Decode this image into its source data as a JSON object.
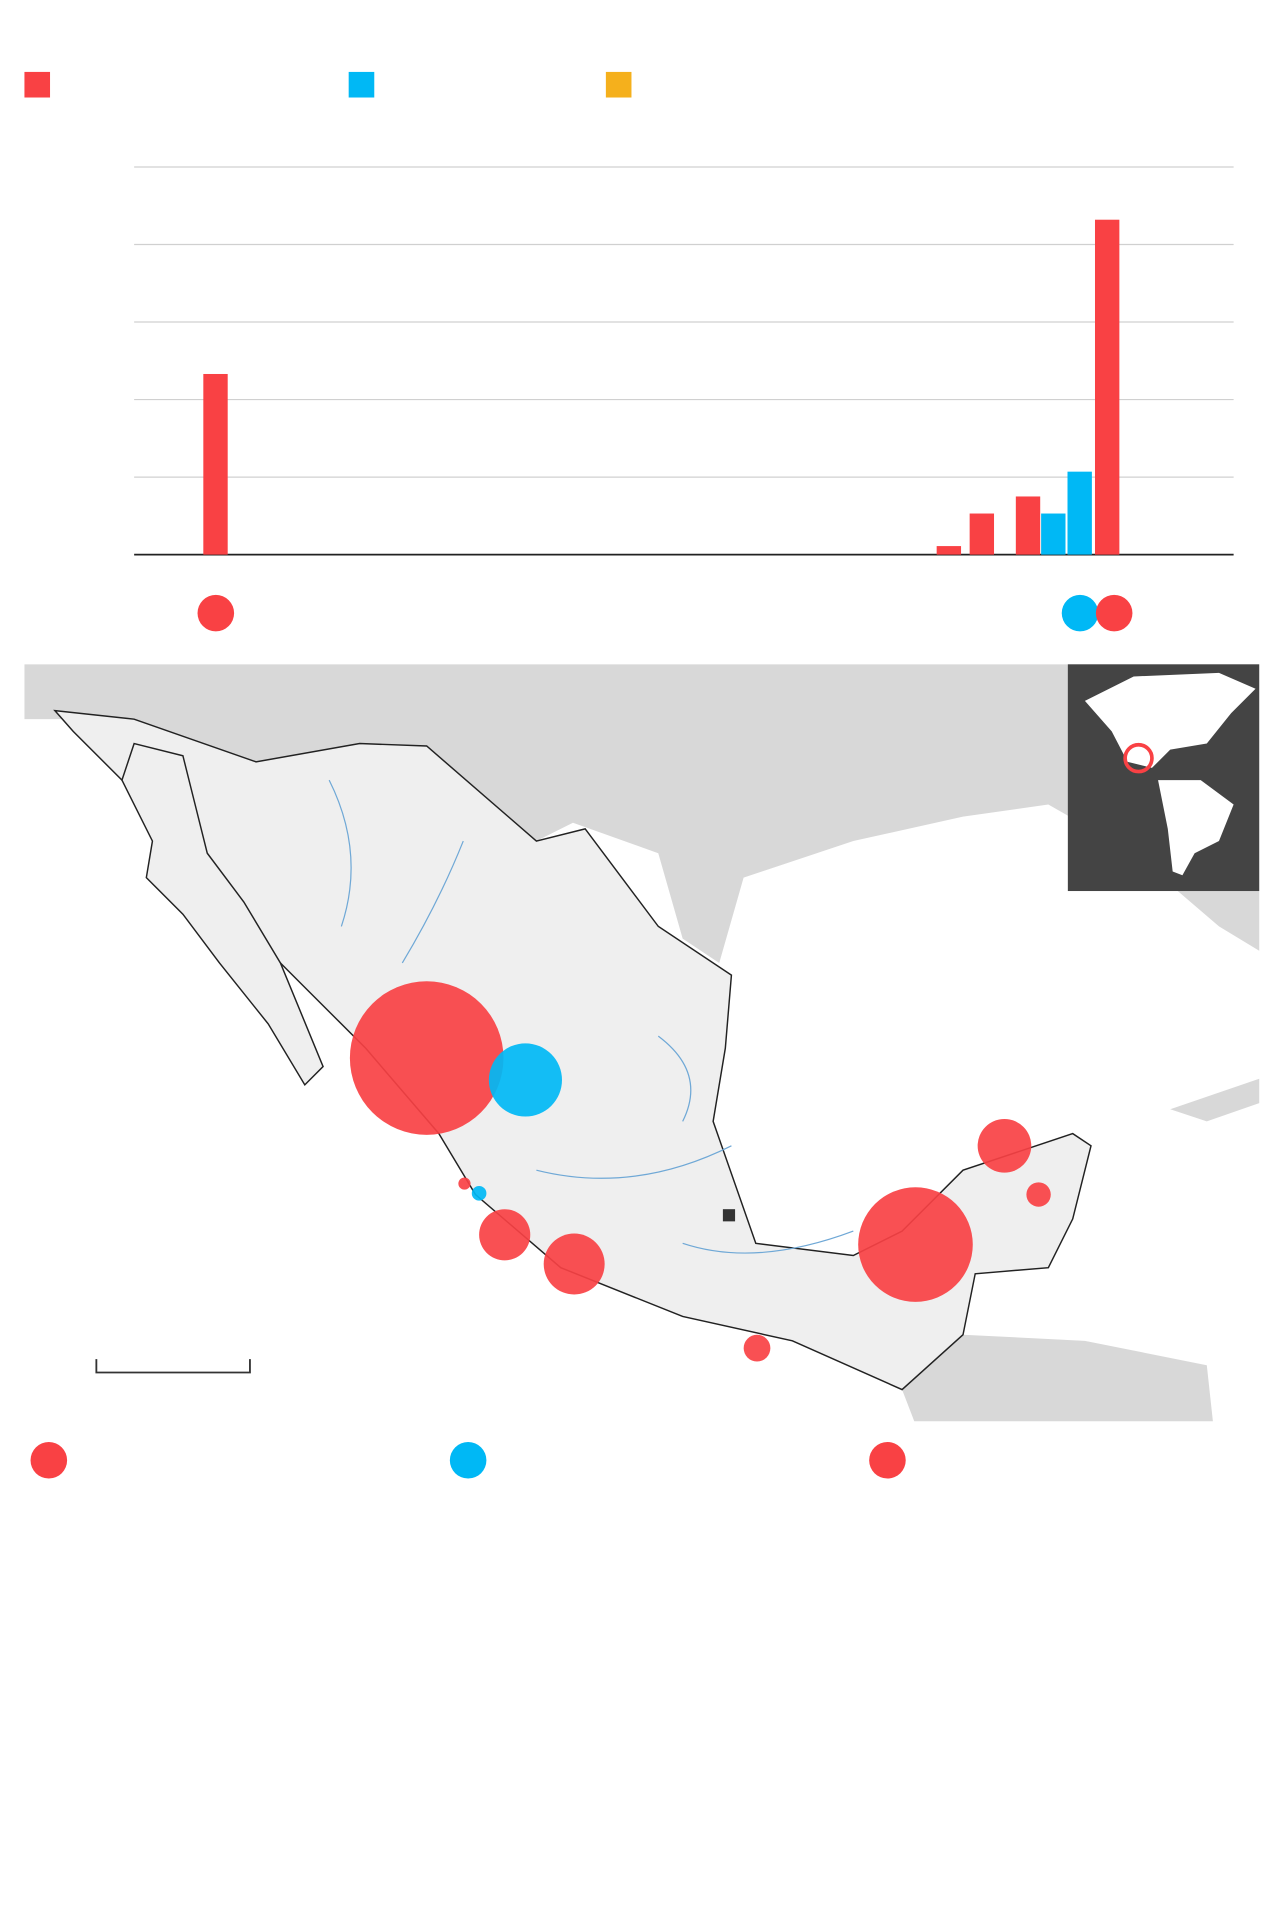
{
  "chart_data": [
    {
      "type": "bar",
      "xlim": [
        0,
        100
      ],
      "ylim": [
        0,
        5
      ],
      "yticks": [
        0,
        1,
        2,
        3,
        4,
        5
      ],
      "grid": true,
      "series": [
        {
          "color": "#f94144",
          "x": [
            7.4,
            74.1,
            77.1,
            81.3,
            88.5
          ],
          "values": [
            2.33,
            0.11,
            0.53,
            0.75,
            4.32
          ]
        },
        {
          "color": "#00b8f5",
          "x": [
            83.6,
            86.0
          ],
          "values": [
            0.53,
            1.07
          ]
        },
        {
          "color": "#f5b01c",
          "x": [],
          "values": []
        }
      ]
    },
    {
      "type": "bubble-map",
      "series": [
        {
          "color": "#f94144",
          "values": [
            39.7,
            0.25,
            4.4,
            6.25,
            1.2,
            22.1,
            4.84,
            1
          ]
        },
        {
          "color": "#00b8f5",
          "values": [
            9,
            0.36
          ]
        }
      ]
    }
  ]
}
